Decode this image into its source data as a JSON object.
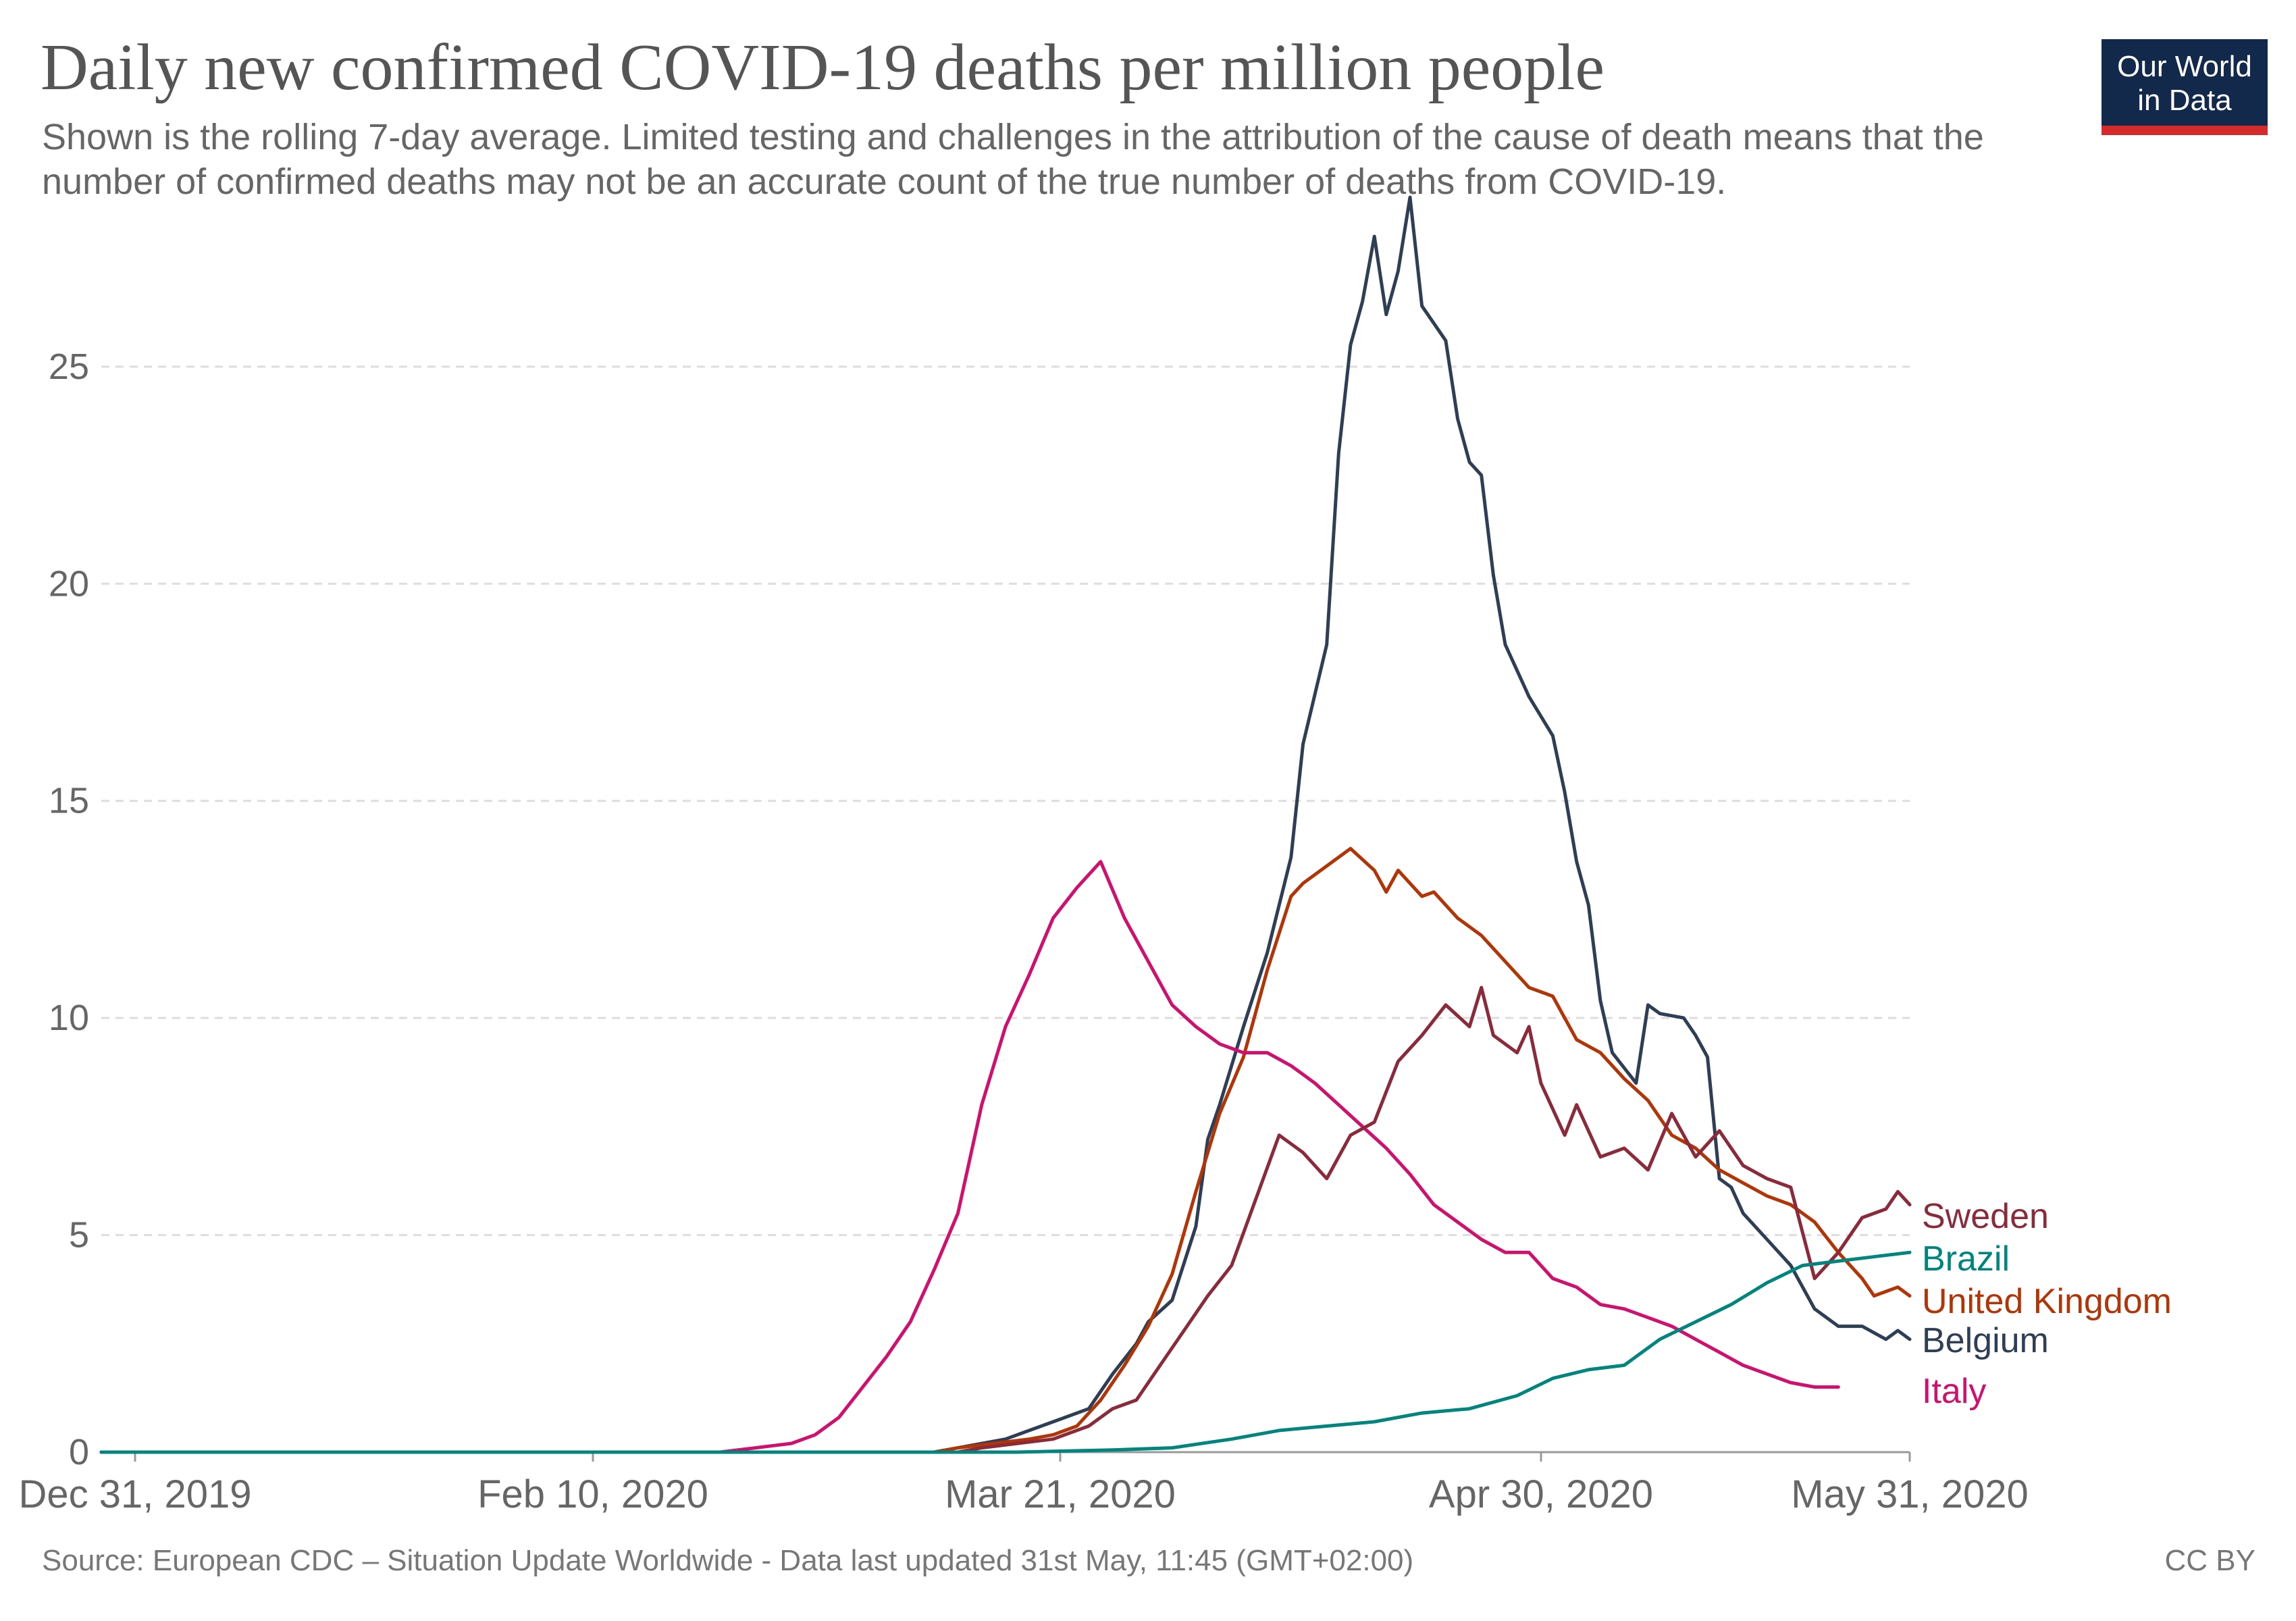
{
  "header": {
    "title": "Daily new confirmed COVID-19 deaths per million people",
    "subtitle": "Shown is the rolling 7-day average. Limited testing and challenges in the attribution of the cause of death means that the number of confirmed deaths may not be an accurate count of the true number of deaths from COVID-19.",
    "logo_line1": "Our World",
    "logo_line2": "in Data"
  },
  "footer": {
    "source": "Source: European CDC – Situation Update Worldwide - Data last updated 31st May, 11:45 (GMT+02:00)",
    "license": "CC BY"
  },
  "colors": {
    "Sweden": "#8b2a3a",
    "Brazil": "#00847e",
    "United Kingdom": "#b13507",
    "Belgium": "#2e3f55",
    "Italy": "#d0106f",
    "grid": "#dddddd",
    "axis_text": "#666666"
  },
  "chart_data": {
    "type": "line",
    "title": "Daily new confirmed COVID-19 deaths per million people",
    "x_axis": {
      "start": "2019-12-31",
      "end": "2020-05-31",
      "tick_labels": [
        "Dec 31, 2019",
        "Feb 10, 2020",
        "Mar 21, 2020",
        "Apr 30, 2020",
        "May 31, 2020"
      ]
    },
    "ylim": [
      0,
      28
    ],
    "y_ticks": [
      0,
      5,
      10,
      15,
      20,
      25
    ],
    "grid": "horizontal dashed",
    "legend": "inline labels at right end of lines",
    "series": [
      {
        "name": "Belgium",
        "points": [
          [
            "2019-12-31",
            0
          ],
          [
            "2020-03-10",
            0
          ],
          [
            "2020-03-16",
            0.3
          ],
          [
            "2020-03-21",
            0.8
          ],
          [
            "2020-03-23",
            1.0
          ],
          [
            "2020-03-25",
            1.8
          ],
          [
            "2020-03-27",
            2.5
          ],
          [
            "2020-03-28",
            3.0
          ],
          [
            "2020-03-30",
            3.5
          ],
          [
            "2020-04-01",
            5.2
          ],
          [
            "2020-04-02",
            7.2
          ],
          [
            "2020-04-03",
            8.0
          ],
          [
            "2020-04-05",
            9.8
          ],
          [
            "2020-04-07",
            11.5
          ],
          [
            "2020-04-09",
            13.7
          ],
          [
            "2020-04-10",
            16.3
          ],
          [
            "2020-04-12",
            18.6
          ],
          [
            "2020-04-13",
            23.0
          ],
          [
            "2020-04-14",
            25.5
          ],
          [
            "2020-04-15",
            26.5
          ],
          [
            "2020-04-16",
            28.0
          ],
          [
            "2020-04-17",
            26.2
          ],
          [
            "2020-04-18",
            27.2
          ],
          [
            "2020-04-19",
            28.9
          ],
          [
            "2020-04-20",
            26.4
          ],
          [
            "2020-04-22",
            25.6
          ],
          [
            "2020-04-23",
            23.8
          ],
          [
            "2020-04-24",
            22.8
          ],
          [
            "2020-04-25",
            22.5
          ],
          [
            "2020-04-26",
            20.2
          ],
          [
            "2020-04-27",
            18.6
          ],
          [
            "2020-04-29",
            17.4
          ],
          [
            "2020-05-01",
            16.5
          ],
          [
            "2020-05-02",
            15.2
          ],
          [
            "2020-05-03",
            13.6
          ],
          [
            "2020-05-04",
            12.6
          ],
          [
            "2020-05-05",
            10.4
          ],
          [
            "2020-05-06",
            9.2
          ],
          [
            "2020-05-08",
            8.5
          ],
          [
            "2020-05-09",
            10.3
          ],
          [
            "2020-05-10",
            10.1
          ],
          [
            "2020-05-12",
            10.0
          ],
          [
            "2020-05-13",
            9.6
          ],
          [
            "2020-05-14",
            9.1
          ],
          [
            "2020-05-15",
            6.3
          ],
          [
            "2020-05-16",
            6.1
          ],
          [
            "2020-05-17",
            5.5
          ],
          [
            "2020-05-19",
            4.9
          ],
          [
            "2020-05-21",
            4.3
          ],
          [
            "2020-05-23",
            3.3
          ],
          [
            "2020-05-25",
            2.9
          ],
          [
            "2020-05-27",
            2.9
          ],
          [
            "2020-05-29",
            2.6
          ],
          [
            "2020-05-30",
            2.8
          ],
          [
            "2020-05-31",
            2.6
          ]
        ]
      },
      {
        "name": "United Kingdom",
        "points": [
          [
            "2019-12-31",
            0
          ],
          [
            "2020-03-10",
            0
          ],
          [
            "2020-03-12",
            0.1
          ],
          [
            "2020-03-15",
            0.2
          ],
          [
            "2020-03-18",
            0.3
          ],
          [
            "2020-03-20",
            0.4
          ],
          [
            "2020-03-22",
            0.6
          ],
          [
            "2020-03-24",
            1.2
          ],
          [
            "2020-03-26",
            2.0
          ],
          [
            "2020-03-28",
            2.9
          ],
          [
            "2020-03-30",
            4.1
          ],
          [
            "2020-04-01",
            6.0
          ],
          [
            "2020-04-03",
            7.8
          ],
          [
            "2020-04-05",
            9.1
          ],
          [
            "2020-04-07",
            11.1
          ],
          [
            "2020-04-09",
            12.8
          ],
          [
            "2020-04-10",
            13.1
          ],
          [
            "2020-04-12",
            13.5
          ],
          [
            "2020-04-14",
            13.9
          ],
          [
            "2020-04-16",
            13.4
          ],
          [
            "2020-04-17",
            12.9
          ],
          [
            "2020-04-18",
            13.4
          ],
          [
            "2020-04-20",
            12.8
          ],
          [
            "2020-04-21",
            12.9
          ],
          [
            "2020-04-23",
            12.3
          ],
          [
            "2020-04-25",
            11.9
          ],
          [
            "2020-04-27",
            11.3
          ],
          [
            "2020-04-29",
            10.7
          ],
          [
            "2020-05-01",
            10.5
          ],
          [
            "2020-05-03",
            9.5
          ],
          [
            "2020-05-05",
            9.2
          ],
          [
            "2020-05-07",
            8.6
          ],
          [
            "2020-05-09",
            8.1
          ],
          [
            "2020-05-11",
            7.3
          ],
          [
            "2020-05-13",
            7.0
          ],
          [
            "2020-05-15",
            6.5
          ],
          [
            "2020-05-17",
            6.2
          ],
          [
            "2020-05-19",
            5.9
          ],
          [
            "2020-05-21",
            5.7
          ],
          [
            "2020-05-23",
            5.3
          ],
          [
            "2020-05-25",
            4.6
          ],
          [
            "2020-05-27",
            4.0
          ],
          [
            "2020-05-28",
            3.6
          ],
          [
            "2020-05-30",
            3.8
          ],
          [
            "2020-05-31",
            3.6
          ]
        ]
      },
      {
        "name": "Italy",
        "points": [
          [
            "2019-12-31",
            0
          ],
          [
            "2020-02-21",
            0
          ],
          [
            "2020-02-24",
            0.1
          ],
          [
            "2020-02-27",
            0.2
          ],
          [
            "2020-02-29",
            0.4
          ],
          [
            "2020-03-02",
            0.8
          ],
          [
            "2020-03-04",
            1.5
          ],
          [
            "2020-03-06",
            2.2
          ],
          [
            "2020-03-08",
            3.0
          ],
          [
            "2020-03-10",
            4.2
          ],
          [
            "2020-03-12",
            5.5
          ],
          [
            "2020-03-14",
            8.0
          ],
          [
            "2020-03-16",
            9.8
          ],
          [
            "2020-03-18",
            11.0
          ],
          [
            "2020-03-20",
            12.3
          ],
          [
            "2020-03-22",
            13.0
          ],
          [
            "2020-03-24",
            13.6
          ],
          [
            "2020-03-26",
            12.3
          ],
          [
            "2020-03-28",
            11.3
          ],
          [
            "2020-03-30",
            10.3
          ],
          [
            "2020-04-01",
            9.8
          ],
          [
            "2020-04-03",
            9.4
          ],
          [
            "2020-04-05",
            9.2
          ],
          [
            "2020-04-07",
            9.2
          ],
          [
            "2020-04-09",
            8.9
          ],
          [
            "2020-04-11",
            8.5
          ],
          [
            "2020-04-13",
            8.0
          ],
          [
            "2020-04-15",
            7.5
          ],
          [
            "2020-04-17",
            7.0
          ],
          [
            "2020-04-19",
            6.4
          ],
          [
            "2020-04-21",
            5.7
          ],
          [
            "2020-04-23",
            5.3
          ],
          [
            "2020-04-25",
            4.9
          ],
          [
            "2020-04-27",
            4.6
          ],
          [
            "2020-04-29",
            4.6
          ],
          [
            "2020-05-01",
            4.0
          ],
          [
            "2020-05-03",
            3.8
          ],
          [
            "2020-05-05",
            3.4
          ],
          [
            "2020-05-07",
            3.3
          ],
          [
            "2020-05-09",
            3.1
          ],
          [
            "2020-05-11",
            2.9
          ],
          [
            "2020-05-13",
            2.6
          ],
          [
            "2020-05-15",
            2.3
          ],
          [
            "2020-05-17",
            2.0
          ],
          [
            "2020-05-19",
            1.8
          ],
          [
            "2020-05-21",
            1.6
          ],
          [
            "2020-05-23",
            1.5
          ],
          [
            "2020-05-25",
            1.5
          ]
        ]
      },
      {
        "name": "Sweden",
        "points": [
          [
            "2019-12-31",
            0
          ],
          [
            "2020-03-12",
            0
          ],
          [
            "2020-03-14",
            0.1
          ],
          [
            "2020-03-17",
            0.2
          ],
          [
            "2020-03-20",
            0.3
          ],
          [
            "2020-03-23",
            0.6
          ],
          [
            "2020-03-25",
            1.0
          ],
          [
            "2020-03-27",
            1.2
          ],
          [
            "2020-03-29",
            2.0
          ],
          [
            "2020-03-31",
            2.8
          ],
          [
            "2020-04-02",
            3.6
          ],
          [
            "2020-04-04",
            4.3
          ],
          [
            "2020-04-06",
            5.8
          ],
          [
            "2020-04-08",
            7.3
          ],
          [
            "2020-04-10",
            6.9
          ],
          [
            "2020-04-12",
            6.3
          ],
          [
            "2020-04-14",
            7.3
          ],
          [
            "2020-04-16",
            7.6
          ],
          [
            "2020-04-18",
            9.0
          ],
          [
            "2020-04-20",
            9.6
          ],
          [
            "2020-04-22",
            10.3
          ],
          [
            "2020-04-24",
            9.8
          ],
          [
            "2020-04-25",
            10.7
          ],
          [
            "2020-04-26",
            9.6
          ],
          [
            "2020-04-28",
            9.2
          ],
          [
            "2020-04-29",
            9.8
          ],
          [
            "2020-04-30",
            8.5
          ],
          [
            "2020-05-02",
            7.3
          ],
          [
            "2020-05-03",
            8.0
          ],
          [
            "2020-05-05",
            6.8
          ],
          [
            "2020-05-07",
            7.0
          ],
          [
            "2020-05-09",
            6.5
          ],
          [
            "2020-05-11",
            7.8
          ],
          [
            "2020-05-13",
            6.8
          ],
          [
            "2020-05-15",
            7.4
          ],
          [
            "2020-05-17",
            6.6
          ],
          [
            "2020-05-19",
            6.3
          ],
          [
            "2020-05-21",
            6.1
          ],
          [
            "2020-05-23",
            4.0
          ],
          [
            "2020-05-25",
            4.6
          ],
          [
            "2020-05-27",
            5.4
          ],
          [
            "2020-05-29",
            5.6
          ],
          [
            "2020-05-30",
            6.0
          ],
          [
            "2020-05-31",
            5.7
          ]
        ]
      },
      {
        "name": "Brazil",
        "points": [
          [
            "2019-12-31",
            0
          ],
          [
            "2020-03-17",
            0
          ],
          [
            "2020-03-20",
            0.02
          ],
          [
            "2020-03-25",
            0.05
          ],
          [
            "2020-03-30",
            0.1
          ],
          [
            "2020-04-04",
            0.3
          ],
          [
            "2020-04-08",
            0.5
          ],
          [
            "2020-04-12",
            0.6
          ],
          [
            "2020-04-16",
            0.7
          ],
          [
            "2020-04-20",
            0.9
          ],
          [
            "2020-04-24",
            1.0
          ],
          [
            "2020-04-28",
            1.3
          ],
          [
            "2020-05-01",
            1.7
          ],
          [
            "2020-05-04",
            1.9
          ],
          [
            "2020-05-07",
            2.0
          ],
          [
            "2020-05-10",
            2.6
          ],
          [
            "2020-05-13",
            3.0
          ],
          [
            "2020-05-16",
            3.4
          ],
          [
            "2020-05-19",
            3.9
          ],
          [
            "2020-05-22",
            4.3
          ],
          [
            "2020-05-25",
            4.4
          ],
          [
            "2020-05-28",
            4.5
          ],
          [
            "2020-05-31",
            4.6
          ]
        ]
      }
    ]
  }
}
